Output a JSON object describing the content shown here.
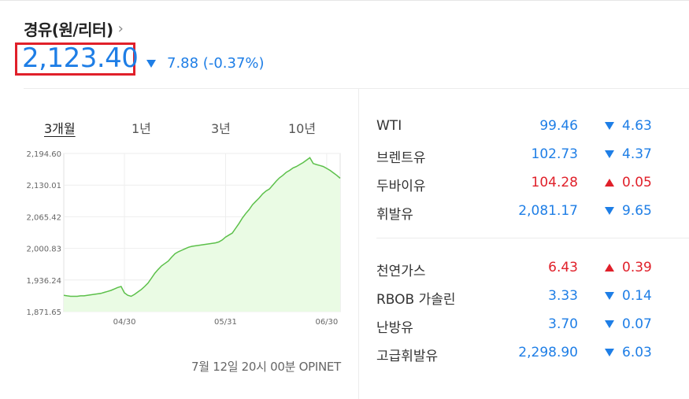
{
  "header": {
    "title": "경유(원/리터)",
    "price": "2,123.40",
    "change": "7.88 (-0.37%)",
    "direction": "down"
  },
  "tabs": [
    "3개월",
    "1년",
    "3년",
    "10년"
  ],
  "active_tab": 0,
  "footnote": "7월 12일 20시 00분 OPINET",
  "colors": {
    "up": "#e0202a",
    "down": "#1e7ee6",
    "line": "#5cc04a",
    "fill": "#eafbe4"
  },
  "chart_data": {
    "type": "area",
    "y_ticks": [
      "2,194.60",
      "2,130.01",
      "2,065.42",
      "2,000.83",
      "1,936.24",
      "1,871.65"
    ],
    "y_tick_values": [
      2194.6,
      2130.01,
      2065.42,
      2000.83,
      1936.24,
      1871.65
    ],
    "x_ticks": [
      "04/30",
      "05/31",
      "06/30"
    ],
    "x_tick_index": [
      18,
      48,
      78
    ],
    "ylim": [
      1871.65,
      2194.6
    ],
    "grid": true,
    "values": [
      1905,
      1904,
      1903,
      1903,
      1903,
      1904,
      1904,
      1905,
      1906,
      1907,
      1908,
      1909,
      1911,
      1913,
      1915,
      1918,
      1921,
      1923,
      1910,
      1905,
      1903,
      1907,
      1912,
      1917,
      1923,
      1930,
      1940,
      1950,
      1958,
      1965,
      1970,
      1975,
      1983,
      1990,
      1994,
      1997,
      2000,
      2003,
      2005,
      2006,
      2007,
      2008,
      2009,
      2010,
      2011,
      2012,
      2014,
      2018,
      2024,
      2028,
      2032,
      2042,
      2052,
      2063,
      2072,
      2080,
      2090,
      2097,
      2104,
      2112,
      2118,
      2122,
      2130,
      2138,
      2145,
      2150,
      2156,
      2160,
      2165,
      2168,
      2172,
      2176,
      2181,
      2186,
      2174,
      2172,
      2170,
      2168,
      2164,
      2160,
      2155,
      2150,
      2144
    ]
  },
  "markets_group1": [
    {
      "name": "WTI",
      "value": "99.46",
      "change": "4.63",
      "dir": "down"
    },
    {
      "name": "브렌트유",
      "value": "102.73",
      "change": "4.37",
      "dir": "down"
    },
    {
      "name": "두바이유",
      "value": "104.28",
      "change": "0.05",
      "dir": "up"
    },
    {
      "name": "휘발유",
      "value": "2,081.17",
      "change": "9.65",
      "dir": "down"
    }
  ],
  "markets_group2": [
    {
      "name": "천연가스",
      "value": "6.43",
      "change": "0.39",
      "dir": "up"
    },
    {
      "name": "RBOB 가솔린",
      "value": "3.33",
      "change": "0.14",
      "dir": "down"
    },
    {
      "name": "난방유",
      "value": "3.70",
      "change": "0.07",
      "dir": "down"
    },
    {
      "name": "고급휘발유",
      "value": "2,298.90",
      "change": "6.03",
      "dir": "down"
    }
  ]
}
